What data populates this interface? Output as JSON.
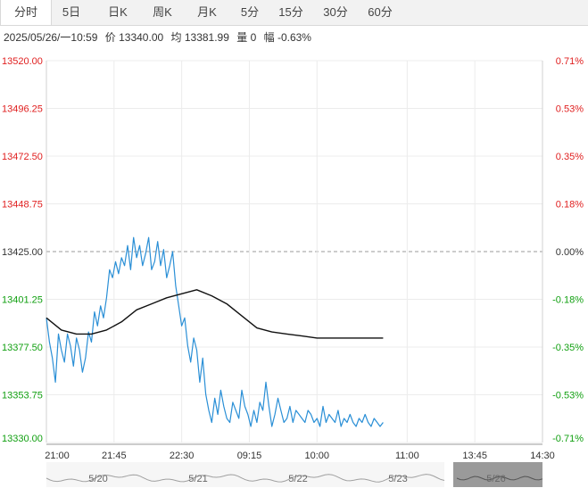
{
  "tabs": [
    {
      "label": "分时",
      "active": true
    },
    {
      "label": "5日",
      "active": false
    },
    {
      "label": "日K",
      "active": false
    },
    {
      "label": "周K",
      "active": false
    },
    {
      "label": "月K",
      "active": false
    },
    {
      "label": "5分",
      "active": false
    },
    {
      "label": "15分",
      "active": false
    },
    {
      "label": "30分",
      "active": false
    },
    {
      "label": "60分",
      "active": false
    }
  ],
  "info": {
    "datetime": "2025/05/26/一10:59",
    "price": "价 13340.00",
    "avg": "均 13381.99",
    "volume": "量 0",
    "change": "幅 -0.63%"
  },
  "colors": {
    "up": "#e02020",
    "down": "#12a012",
    "neutral": "#333333",
    "price_line": "#2a8fd6",
    "avg_line": "#111111"
  },
  "chart_data": {
    "type": "line",
    "title": "",
    "xlabel": "",
    "ylabel": "",
    "ylim": [
      13330.0,
      13520.0
    ],
    "prev_close": 13425.0,
    "yticks": [
      {
        "value": 13520.0,
        "label": "13520.00",
        "pct": "0.71%",
        "side": "up"
      },
      {
        "value": 13496.25,
        "label": "13496.25",
        "pct": "0.53%",
        "side": "up"
      },
      {
        "value": 13472.5,
        "label": "13472.50",
        "pct": "0.35%",
        "side": "up"
      },
      {
        "value": 13448.75,
        "label": "13448.75",
        "pct": "0.18%",
        "side": "up"
      },
      {
        "value": 13425.0,
        "label": "13425.00",
        "pct": "0.00%",
        "side": "neutral"
      },
      {
        "value": 13401.25,
        "label": "13401.25",
        "pct": "-0.18%",
        "side": "down"
      },
      {
        "value": 13377.5,
        "label": "13377.50",
        "pct": "-0.35%",
        "side": "down"
      },
      {
        "value": 13353.75,
        "label": "13353.75",
        "pct": "-0.53%",
        "side": "down"
      },
      {
        "value": 13330.0,
        "label": "13330.00",
        "pct": "-0.71%",
        "side": "down"
      }
    ],
    "x_ticks": [
      "21:00",
      "21:45",
      "22:30",
      "09:15",
      "10:00",
      "11:00",
      "13:45",
      "14:30"
    ],
    "x_tick_index": [
      0,
      45,
      90,
      135,
      180,
      240,
      285,
      330
    ],
    "x_max_index": 330,
    "navigator_labels": [
      "5/20",
      "5/21",
      "5/22",
      "5/23",
      "5/26"
    ],
    "series": [
      {
        "key": "price",
        "x": [
          0,
          2,
          4,
          6,
          8,
          10,
          12,
          14,
          16,
          18,
          20,
          22,
          24,
          26,
          28,
          30,
          32,
          34,
          36,
          38,
          40,
          42,
          44,
          46,
          48,
          50,
          52,
          54,
          56,
          58,
          60,
          62,
          64,
          66,
          68,
          70,
          72,
          74,
          76,
          78,
          80,
          82,
          84,
          86,
          88,
          90,
          92,
          94,
          96,
          98,
          100,
          102,
          104,
          106,
          108,
          110,
          112,
          114,
          116,
          118,
          120,
          122,
          124,
          126,
          128,
          130,
          132,
          134,
          136,
          138,
          140,
          142,
          144,
          146,
          148,
          150,
          152,
          154,
          156,
          158,
          160,
          162,
          164,
          166,
          168,
          170,
          172,
          174,
          176,
          178,
          180,
          182,
          184,
          186,
          188,
          190,
          192,
          194,
          196,
          198,
          200,
          202,
          204,
          206,
          208,
          210,
          212,
          214,
          216,
          218,
          220,
          222,
          224
        ],
        "values": [
          13392,
          13380,
          13372,
          13360,
          13384,
          13376,
          13370,
          13384,
          13378,
          13368,
          13382,
          13376,
          13365,
          13372,
          13385,
          13380,
          13395,
          13388,
          13398,
          13392,
          13402,
          13416,
          13412,
          13420,
          13414,
          13422,
          13418,
          13428,
          13416,
          13432,
          13422,
          13428,
          13418,
          13424,
          13432,
          13416,
          13420,
          13430,
          13418,
          13426,
          13412,
          13418,
          13425,
          13408,
          13398,
          13388,
          13392,
          13378,
          13370,
          13382,
          13376,
          13360,
          13372,
          13354,
          13346,
          13340,
          13352,
          13344,
          13356,
          13348,
          13342,
          13340,
          13350,
          13346,
          13342,
          13356,
          13348,
          13344,
          13338,
          13346,
          13340,
          13350,
          13346,
          13360,
          13348,
          13338,
          13344,
          13352,
          13346,
          13340,
          13342,
          13348,
          13340,
          13346,
          13344,
          13342,
          13340,
          13346,
          13344,
          13340,
          13342,
          13338,
          13348,
          13340,
          13344,
          13342,
          13340,
          13346,
          13338,
          13342,
          13340,
          13344,
          13340,
          13338,
          13342,
          13340,
          13344,
          13340,
          13338,
          13342,
          13340,
          13338,
          13340
        ]
      },
      {
        "key": "avg",
        "x": [
          0,
          10,
          20,
          30,
          40,
          50,
          60,
          70,
          80,
          90,
          100,
          110,
          120,
          130,
          140,
          150,
          160,
          170,
          180,
          190,
          200,
          210,
          220,
          224
        ],
        "values": [
          13392,
          13386,
          13384,
          13384,
          13386,
          13390,
          13396,
          13399,
          13402,
          13404,
          13406,
          13403,
          13399,
          13393,
          13387,
          13385,
          13384,
          13383,
          13382,
          13382,
          13382,
          13382,
          13382,
          13382
        ]
      }
    ]
  }
}
